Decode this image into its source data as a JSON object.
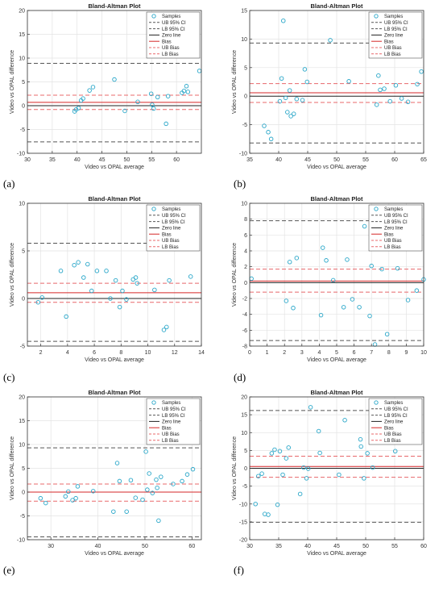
{
  "chart_data": [
    {
      "label": "(a)",
      "type": "scatter",
      "title": "Bland-Altman Plot",
      "xlabel": "Video vs OPAL average",
      "ylabel": "Video vs OPAL difference",
      "xlim": [
        30,
        65
      ],
      "ylim": [
        -10,
        20
      ],
      "xticks": [
        30,
        35,
        40,
        45,
        50,
        55,
        60
      ],
      "yticks": [
        -10,
        -5,
        0,
        5,
        10,
        15,
        20
      ],
      "grid": true,
      "legend_position": "top-right",
      "legend": [
        "Samples",
        "UB 95% CI",
        "LB 95% CI",
        "Zero line",
        "Bias",
        "UB Bias",
        "LB Bias"
      ],
      "lines": {
        "ub_ci": 8.9,
        "lb_ci": -7.6,
        "zero": 0,
        "bias": 0.7,
        "ub_bias": 2.2,
        "lb_bias": -0.8
      },
      "points": [
        [
          39.5,
          -1.2
        ],
        [
          39.8,
          -0.8
        ],
        [
          40.3,
          -0.5
        ],
        [
          40.8,
          1.1
        ],
        [
          41.2,
          1.5
        ],
        [
          42.5,
          3.2
        ],
        [
          43.2,
          3.9
        ],
        [
          47.5,
          5.5
        ],
        [
          49.6,
          -1.1
        ],
        [
          52.2,
          0.8
        ],
        [
          54.9,
          2.5
        ],
        [
          55.1,
          0.2
        ],
        [
          55.4,
          -0.6
        ],
        [
          56.2,
          1.8
        ],
        [
          57.9,
          -3.8
        ],
        [
          58.3,
          2.0
        ],
        [
          61.1,
          2.7
        ],
        [
          61.5,
          3.1
        ],
        [
          62.0,
          4.1
        ],
        [
          64.6,
          7.3
        ],
        [
          62.3,
          2.9
        ]
      ]
    },
    {
      "label": "(b)",
      "type": "scatter",
      "title": "Bland-Altman Plot",
      "xlabel": "Video vs OPAL average",
      "ylabel": "Video vs OPAL difference",
      "xlim": [
        35,
        65
      ],
      "ylim": [
        -10,
        15
      ],
      "xticks": [
        35,
        40,
        45,
        50,
        55,
        60,
        65
      ],
      "yticks": [
        -10,
        -5,
        0,
        5,
        10,
        15
      ],
      "grid": true,
      "legend_position": "top-right",
      "legend": [
        "Samples",
        "UB 95% CI",
        "LB 95% CI",
        "Zero line",
        "Bias",
        "UB Bias",
        "LB Bias"
      ],
      "lines": {
        "ub_ci": 9.3,
        "lb_ci": -8.2,
        "zero": 0,
        "bias": 0.6,
        "ub_bias": 2.2,
        "lb_bias": -1.1
      },
      "points": [
        [
          37.5,
          -5.2
        ],
        [
          38.2,
          -6.3
        ],
        [
          38.7,
          -7.5
        ],
        [
          40.2,
          -0.9
        ],
        [
          40.5,
          3.1
        ],
        [
          40.8,
          13.2
        ],
        [
          41.2,
          -0.3
        ],
        [
          41.5,
          -2.8
        ],
        [
          41.9,
          1.0
        ],
        [
          42.1,
          -3.5
        ],
        [
          42.6,
          -3.1
        ],
        [
          43.1,
          -0.5
        ],
        [
          44.1,
          -0.7
        ],
        [
          44.5,
          4.7
        ],
        [
          44.9,
          2.5
        ],
        [
          48.9,
          9.8
        ],
        [
          52.1,
          2.6
        ],
        [
          56.9,
          -1.5
        ],
        [
          57.2,
          3.6
        ],
        [
          57.5,
          1.1
        ],
        [
          58.2,
          1.3
        ],
        [
          59.2,
          -0.9
        ],
        [
          60.2,
          1.9
        ],
        [
          61.2,
          -0.4
        ],
        [
          62.3,
          -1.0
        ],
        [
          63.9,
          2.1
        ],
        [
          64.6,
          4.3
        ]
      ]
    },
    {
      "label": "(c)",
      "type": "scatter",
      "title": "Bland-Altman Plot",
      "xlabel": "Video vs OPAL average",
      "ylabel": "Video vs OPAL difference",
      "xlim": [
        1,
        14
      ],
      "ylim": [
        -5,
        10
      ],
      "xticks": [
        2,
        4,
        6,
        8,
        10,
        12,
        14
      ],
      "yticks": [
        -5,
        0,
        5,
        10
      ],
      "grid": true,
      "legend_position": "top-right",
      "legend": [
        "Samples",
        "UB 95% CI",
        "LB 95% CI",
        "Zero line",
        "Bias",
        "UB Bias",
        "LB Bias"
      ],
      "lines": {
        "ub_ci": 5.8,
        "lb_ci": -4.5,
        "zero": 0,
        "bias": 0.6,
        "ub_bias": 1.6,
        "lb_bias": -0.4
      },
      "points": [
        [
          1.8,
          -0.4
        ],
        [
          2.1,
          0.1
        ],
        [
          3.5,
          2.9
        ],
        [
          3.9,
          -1.9
        ],
        [
          4.5,
          3.5
        ],
        [
          4.8,
          3.8
        ],
        [
          5.2,
          2.2
        ],
        [
          5.5,
          3.6
        ],
        [
          5.8,
          0.8
        ],
        [
          6.2,
          2.9
        ],
        [
          6.9,
          2.9
        ],
        [
          7.2,
          0.0
        ],
        [
          7.6,
          1.9
        ],
        [
          7.9,
          -0.9
        ],
        [
          8.1,
          0.8
        ],
        [
          8.4,
          -0.1
        ],
        [
          8.9,
          2.0
        ],
        [
          9.1,
          2.2
        ],
        [
          9.2,
          1.6
        ],
        [
          10.5,
          0.9
        ],
        [
          11.2,
          -3.3
        ],
        [
          11.4,
          -3.0
        ],
        [
          11.6,
          1.9
        ],
        [
          13.2,
          2.3
        ]
      ]
    },
    {
      "label": "(d)",
      "type": "scatter",
      "title": "Bland-Altman Plot",
      "xlabel": "Video vs OPAL average",
      "ylabel": "Video vs OPAL difference",
      "xlim": [
        0,
        10
      ],
      "ylim": [
        -8,
        10
      ],
      "xticks": [
        0,
        1,
        2,
        3,
        4,
        5,
        6,
        7,
        8,
        9,
        10
      ],
      "yticks": [
        -8,
        -6,
        -4,
        -2,
        0,
        2,
        4,
        6,
        8,
        10
      ],
      "grid": true,
      "legend_position": "top-right",
      "legend": [
        "Samples",
        "UB 95% CI",
        "LB 95% CI",
        "Zero line",
        "Bias",
        "UB Bias",
        "LB Bias"
      ],
      "lines": {
        "ub_ci": 7.8,
        "lb_ci": -7.3,
        "zero": 0,
        "bias": 0.2,
        "ub_bias": 1.7,
        "lb_bias": -1.2
      },
      "points": [
        [
          0.1,
          0.5
        ],
        [
          2.1,
          -2.3
        ],
        [
          2.3,
          2.6
        ],
        [
          2.5,
          -3.2
        ],
        [
          2.7,
          3.1
        ],
        [
          4.1,
          -4.1
        ],
        [
          4.2,
          4.4
        ],
        [
          4.4,
          2.8
        ],
        [
          4.8,
          0.3
        ],
        [
          5.4,
          -3.1
        ],
        [
          5.6,
          2.9
        ],
        [
          5.9,
          -2.1
        ],
        [
          6.3,
          -3.1
        ],
        [
          6.6,
          7.1
        ],
        [
          6.9,
          -4.2
        ],
        [
          7.0,
          2.1
        ],
        [
          7.2,
          -7.8
        ],
        [
          7.6,
          1.7
        ],
        [
          7.9,
          -6.5
        ],
        [
          8.5,
          1.8
        ],
        [
          9.1,
          -2.2
        ],
        [
          9.4,
          8.8
        ],
        [
          9.6,
          -1.0
        ],
        [
          10.0,
          0.4
        ]
      ]
    },
    {
      "label": "(e)",
      "type": "scatter",
      "title": "Bland-Altman Plot",
      "xlabel": "Video vs OPAL average",
      "ylabel": "Video vs OPAL difference",
      "xlim": [
        25,
        62
      ],
      "ylim": [
        -10,
        20
      ],
      "xticks": [
        30,
        40,
        50,
        60
      ],
      "yticks": [
        -10,
        -5,
        0,
        5,
        10,
        15,
        20
      ],
      "grid": true,
      "legend_position": "top-right",
      "legend": [
        "Samples",
        "UB 95% CI",
        "LB 95% CI",
        "Zero line",
        "Bias",
        "UB Bias",
        "LB Bias"
      ],
      "lines": {
        "ub_ci": 9.3,
        "lb_ci": -9.4,
        "zero": 0,
        "bias": 0.0,
        "ub_bias": 1.7,
        "lb_bias": -1.9
      },
      "points": [
        [
          27.8,
          -1.3
        ],
        [
          28.9,
          -2.3
        ],
        [
          33.1,
          -0.9
        ],
        [
          33.7,
          0.1
        ],
        [
          34.6,
          -1.7
        ],
        [
          35.3,
          -1.3
        ],
        [
          35.7,
          1.2
        ],
        [
          39.0,
          0.2
        ],
        [
          43.3,
          -4.1
        ],
        [
          44.1,
          6.1
        ],
        [
          44.6,
          2.3
        ],
        [
          46.1,
          -4.1
        ],
        [
          47.0,
          2.5
        ],
        [
          48.0,
          -1.2
        ],
        [
          49.5,
          -1.6
        ],
        [
          50.2,
          8.5
        ],
        [
          50.5,
          0.5
        ],
        [
          50.9,
          3.9
        ],
        [
          51.6,
          -0.2
        ],
        [
          52.4,
          2.6
        ],
        [
          52.6,
          0.9
        ],
        [
          52.9,
          -6.0
        ],
        [
          53.4,
          3.2
        ],
        [
          56.0,
          1.7
        ],
        [
          57.9,
          2.3
        ],
        [
          59.0,
          3.7
        ],
        [
          60.2,
          4.8
        ]
      ]
    },
    {
      "label": "(f)",
      "type": "scatter",
      "title": "Bland-Altman Plot",
      "xlabel": "Video vs OPAL average",
      "ylabel": "Video vs OPAL difference",
      "xlim": [
        30,
        60
      ],
      "ylim": [
        -20,
        20
      ],
      "xticks": [
        30,
        35,
        40,
        45,
        50,
        55,
        60
      ],
      "yticks": [
        -20,
        -15,
        -10,
        -5,
        0,
        5,
        10,
        15,
        20
      ],
      "grid": true,
      "legend_position": "top-right",
      "legend": [
        "Samples",
        "UB 95% CI",
        "LB 95% CI",
        "Zero line",
        "Bias",
        "UB Bias",
        "LB Bias"
      ],
      "lines": {
        "ub_ci": 16.2,
        "lb_ci": -15.1,
        "zero": 0,
        "bias": 0.5,
        "ub_bias": 3.4,
        "lb_bias": -2.5
      },
      "points": [
        [
          31.0,
          -10.0
        ],
        [
          31.5,
          -2.2
        ],
        [
          32.1,
          -1.5
        ],
        [
          32.6,
          -12.8
        ],
        [
          33.2,
          -13.0
        ],
        [
          33.8,
          4.2
        ],
        [
          34.3,
          5.2
        ],
        [
          34.8,
          -10.2
        ],
        [
          35.2,
          4.8
        ],
        [
          35.7,
          -1.8
        ],
        [
          36.3,
          2.8
        ],
        [
          36.7,
          5.8
        ],
        [
          38.7,
          -7.2
        ],
        [
          39.3,
          0.2
        ],
        [
          39.8,
          -2.8
        ],
        [
          40.1,
          -0.1
        ],
        [
          40.5,
          17.1
        ],
        [
          41.9,
          10.4
        ],
        [
          42.1,
          4.3
        ],
        [
          45.4,
          -1.8
        ],
        [
          46.4,
          13.5
        ],
        [
          49.1,
          8.1
        ],
        [
          49.2,
          6.1
        ],
        [
          49.7,
          -2.8
        ],
        [
          50.3,
          4.2
        ],
        [
          51.2,
          0.2
        ],
        [
          55.1,
          4.8
        ]
      ]
    }
  ]
}
